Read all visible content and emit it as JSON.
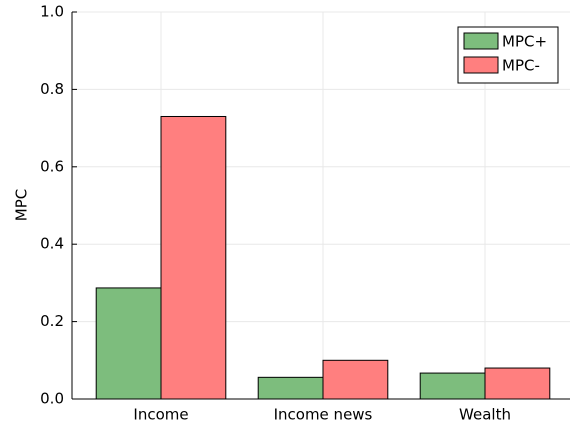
{
  "chart_data": {
    "type": "bar",
    "ylabel": "MPC",
    "categories": [
      "Income",
      "Income news",
      "Wealth"
    ],
    "series": [
      {
        "name": "MPC+",
        "color": "#7dbd7d",
        "values": [
          0.287,
          0.056,
          0.067
        ]
      },
      {
        "name": "MPC-",
        "color": "#ff7f7f",
        "values": [
          0.73,
          0.1,
          0.08
        ]
      }
    ],
    "ylim": [
      0,
      1
    ],
    "yticks": [
      {
        "value": 0,
        "label": "0.0"
      },
      0.2,
      0.4,
      0.6,
      0.8,
      {
        "value": 1,
        "label": "1.0"
      }
    ],
    "grid": true,
    "legend": "top-right"
  }
}
